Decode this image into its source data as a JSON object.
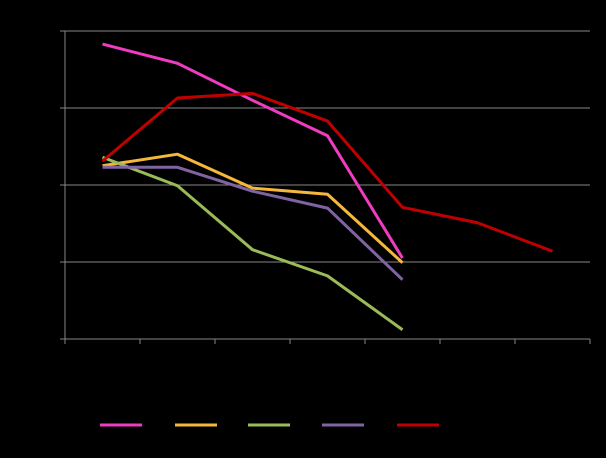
{
  "chart_data": {
    "type": "line",
    "categories": [
      null,
      null,
      null,
      null,
      null,
      null,
      null
    ],
    "series": [
      {
        "color": "#f03cc0",
        "values": [
          3.83,
          3.58,
          3.1,
          2.64,
          1.05,
          null,
          null
        ]
      },
      {
        "color": "#f5b83a",
        "values": [
          2.25,
          2.4,
          1.96,
          1.88,
          0.99,
          null,
          null
        ]
      },
      {
        "color": "#9bbb59",
        "values": [
          2.36,
          1.99,
          1.16,
          0.82,
          0.12,
          null,
          null
        ]
      },
      {
        "color": "#8064a2",
        "values": [
          2.23,
          2.23,
          1.92,
          1.7,
          0.77,
          null,
          null
        ]
      },
      {
        "color": "#c00000",
        "values": [
          2.31,
          3.13,
          3.19,
          2.83,
          1.71,
          1.51,
          1.14
        ]
      }
    ],
    "ylim": [
      0,
      4
    ],
    "yticks": [
      0,
      1,
      2,
      3,
      4
    ],
    "grid": true,
    "legend": "bottom"
  }
}
